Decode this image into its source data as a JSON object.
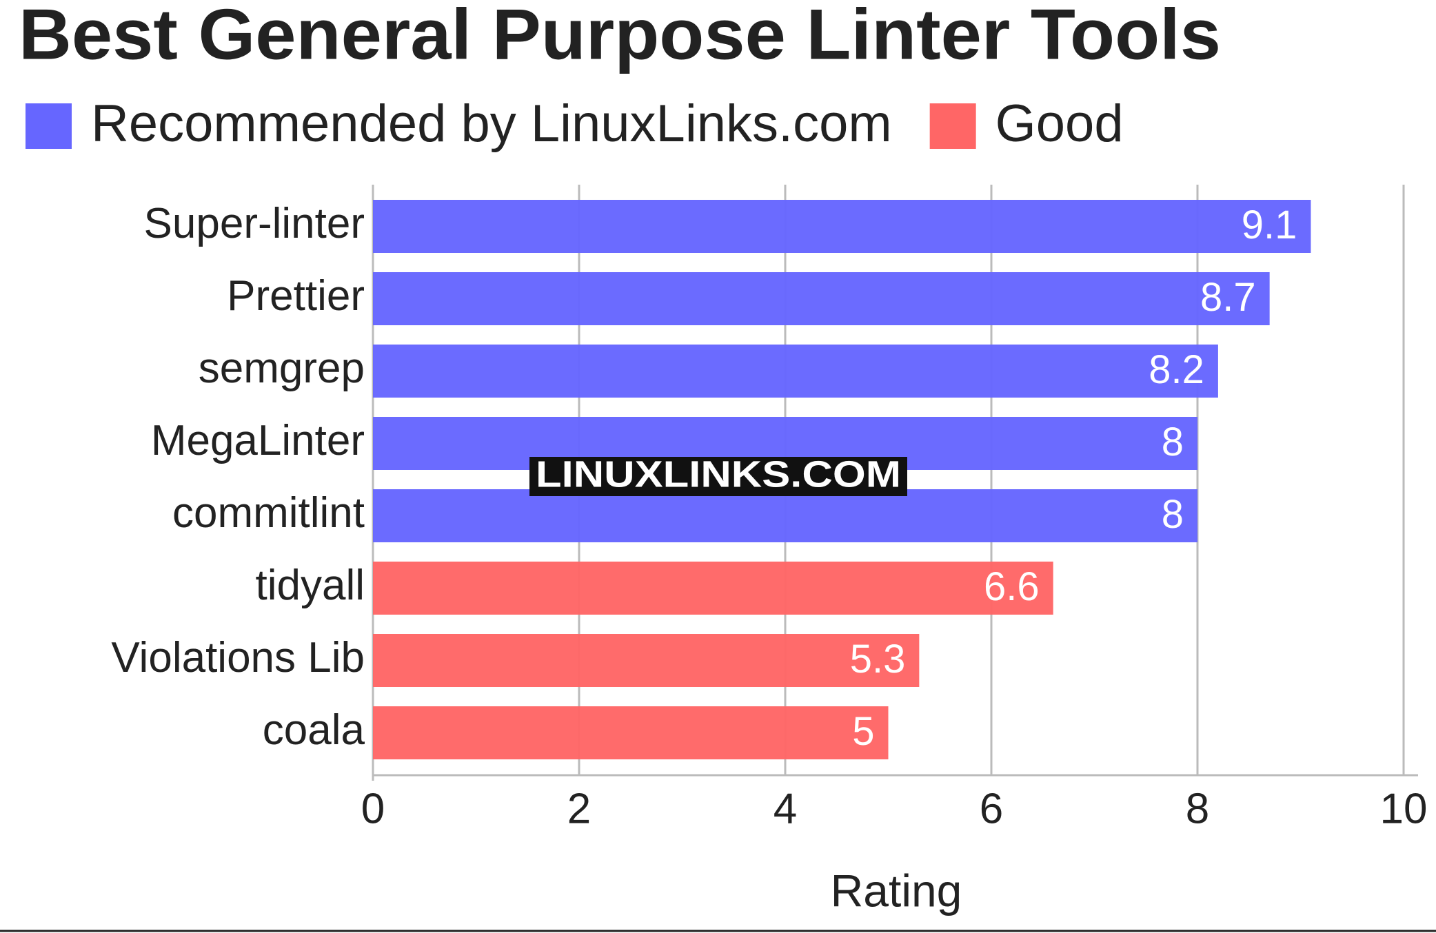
{
  "chart_data": {
    "type": "bar",
    "orientation": "horizontal",
    "title": "Best General Purpose Linter Tools",
    "categories": [
      "Super-linter",
      "Prettier",
      "semgrep",
      "MegaLinter",
      "commitlint",
      "tidyall",
      "Violations Lib",
      "coala"
    ],
    "series": [
      {
        "name": "Recommended by LinuxLinks.com",
        "color": "#6666ff",
        "values": [
          9.1,
          8.7,
          8.2,
          8,
          8,
          null,
          null,
          null
        ]
      },
      {
        "name": "Good",
        "color": "#ff6666",
        "values": [
          null,
          null,
          null,
          null,
          null,
          6.6,
          5.3,
          5
        ]
      }
    ],
    "xlabel": "Rating",
    "xlim": [
      0,
      10
    ],
    "xticks": [
      0,
      2,
      4,
      6,
      8,
      10
    ],
    "grid": true,
    "watermark": "LINUXLINKS.COM"
  }
}
